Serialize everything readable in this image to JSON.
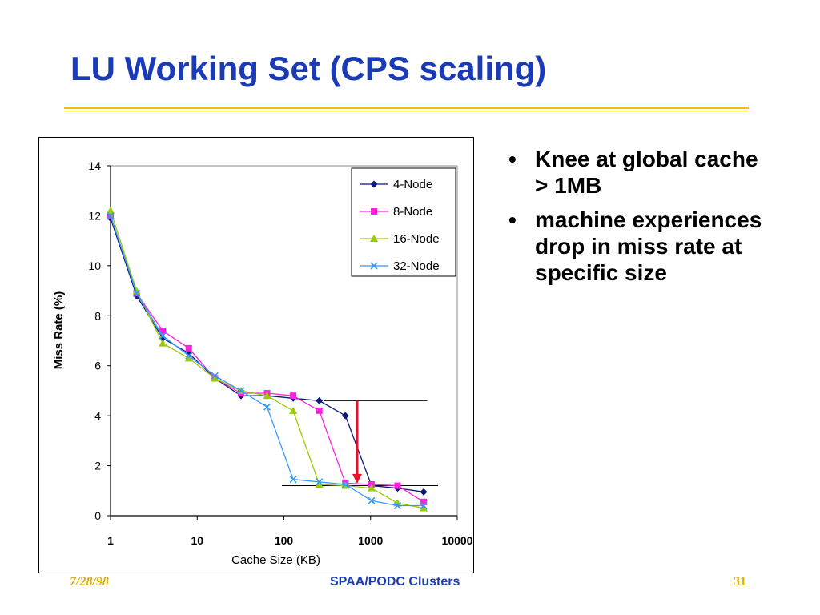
{
  "slide": {
    "title": "LU Working Set (CPS scaling)",
    "bullets": [
      "Knee at global cache > 1MB",
      "machine experiences drop in miss rate at specific size"
    ],
    "bullet_glyph": "•",
    "footer": {
      "date": "7/28/98",
      "center": "SPAA/PODC Clusters",
      "page": "31"
    },
    "colors": {
      "title": "#1a3bb5",
      "rule": "#f2c200",
      "footer_accent": "#e0b000",
      "arrow": "#e8102a"
    }
  },
  "chart_data": {
    "type": "line",
    "xlabel": "Cache Size (KB)",
    "ylabel": "Miss Rate (%)",
    "xscale": "log",
    "xlim": [
      1,
      10000
    ],
    "ylim": [
      0,
      14
    ],
    "xticks": [
      1,
      10,
      100,
      1000,
      10000
    ],
    "xtick_labels": [
      "1",
      "10",
      "100",
      "1000",
      "10000"
    ],
    "yticks": [
      0,
      2,
      4,
      6,
      8,
      10,
      12,
      14
    ],
    "ytick_labels": [
      "0",
      "2",
      "4",
      "6",
      "8",
      "10",
      "12",
      "14"
    ],
    "x": [
      1,
      2,
      4,
      8,
      16,
      32,
      64,
      128,
      256,
      512,
      1024,
      2048,
      4096
    ],
    "legend_position": "top-right",
    "grid": false,
    "series": [
      {
        "name": "4-Node",
        "color": "#0a1a7a",
        "marker": "diamond",
        "values": [
          11.9,
          8.8,
          7.1,
          6.5,
          5.5,
          4.8,
          4.8,
          4.7,
          4.6,
          4.0,
          1.2,
          1.1,
          0.95
        ]
      },
      {
        "name": "8-Node",
        "color": "#ff22dd",
        "marker": "square",
        "values": [
          12.0,
          8.9,
          7.4,
          6.7,
          5.5,
          4.9,
          4.9,
          4.8,
          4.2,
          1.3,
          1.25,
          1.2,
          0.55
        ]
      },
      {
        "name": "16-Node",
        "color": "#99cc00",
        "marker": "triangle",
        "values": [
          12.2,
          9.0,
          6.9,
          6.3,
          5.5,
          5.0,
          4.8,
          4.2,
          1.25,
          1.2,
          1.1,
          0.5,
          0.3
        ]
      },
      {
        "name": "32-Node",
        "color": "#3399ff",
        "marker": "x",
        "values": [
          12.0,
          8.9,
          7.2,
          6.4,
          5.6,
          5.0,
          4.35,
          1.45,
          1.35,
          1.25,
          0.6,
          0.4,
          0.4
        ]
      }
    ],
    "annotations": {
      "upper_line": {
        "x": [
          290,
          4500
        ],
        "y": 4.6
      },
      "lower_line": {
        "x": [
          95,
          6000
        ],
        "y": 1.2
      },
      "arrow": {
        "x": 700,
        "y_from": 4.6,
        "y_to": 1.35
      }
    }
  }
}
